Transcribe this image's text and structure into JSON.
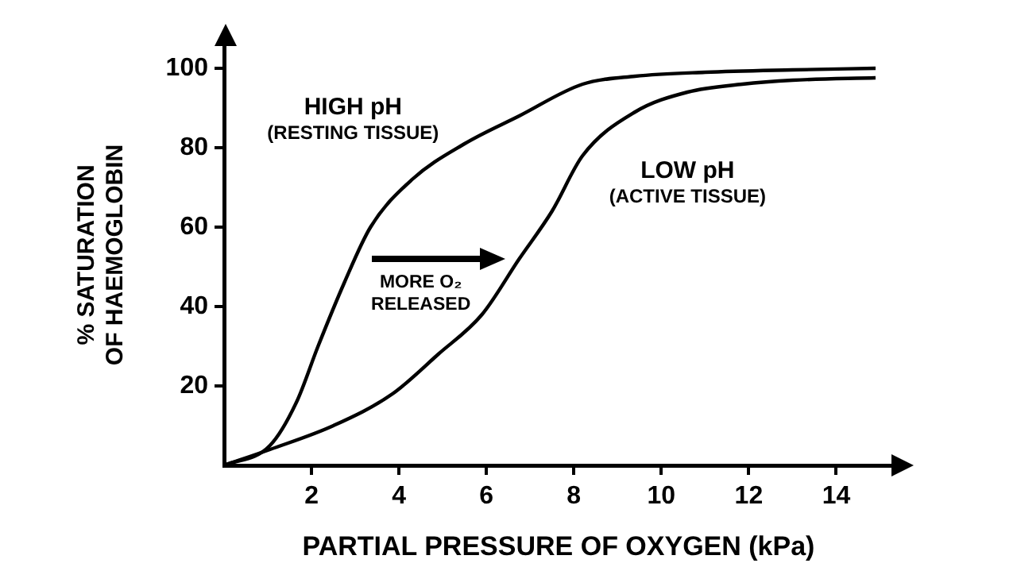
{
  "chart_data": {
    "type": "line",
    "xlabel": "PARTIAL PRESSURE OF OXYGEN (kPa)",
    "ylabel": "% SATURATION OF HAEMOGLOBIN",
    "series": [
      {
        "name": "HIGH pH (RESTING TISSUE)",
        "color": "#000000",
        "x": [
          0,
          1.05,
          1.66,
          2.15,
          2.75,
          3.35,
          4.3,
          5.5,
          6.75,
          8.2,
          9.4,
          11,
          13,
          14.9
        ],
        "values": [
          0,
          5,
          16,
          30,
          46,
          60,
          72,
          81,
          88,
          96,
          98,
          99,
          99.6,
          100
        ]
      },
      {
        "name": "LOW pH (ACTIVE TISSUE)",
        "color": "#000000",
        "x": [
          0,
          1.05,
          2.5,
          3.85,
          4.9,
          5.9,
          6.75,
          7.5,
          8.2,
          9.4,
          10.6,
          11.85,
          13,
          14.9
        ],
        "values": [
          0,
          4,
          10,
          18,
          28,
          38,
          52,
          64,
          78,
          89,
          94,
          96,
          97,
          97.6
        ]
      }
    ],
    "annotations": [
      "MORE O₂ RELEASED"
    ],
    "xlim": [
      0,
      15.3
    ],
    "xticks": [
      2,
      4,
      6,
      8,
      10,
      12,
      14
    ],
    "ylim": [
      0,
      106
    ],
    "yticks": [
      20,
      40,
      60,
      80,
      100
    ],
    "grid": false,
    "legend": false,
    "marker": "none",
    "line_style": "solid"
  }
}
